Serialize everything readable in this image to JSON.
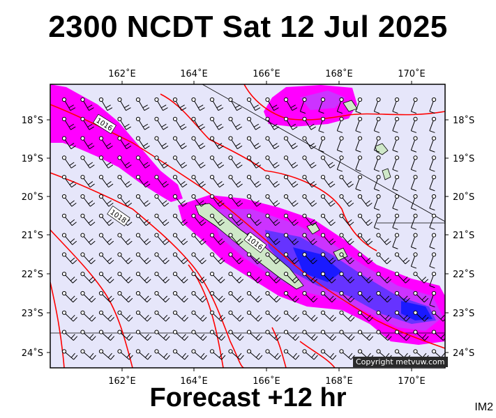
{
  "title": "2300 NCDT Sat 12 Jul 2025",
  "forecast": "Forecast +12 hr",
  "image_tag": "IM2",
  "copyright": "Copyright metvuw.com",
  "lon_labels": [
    "162˚E",
    "164˚E",
    "166˚E",
    "168˚E",
    "170˚E"
  ],
  "lat_labels": [
    "18˚S",
    "19˚S",
    "20˚S",
    "21˚S",
    "22˚S",
    "23˚S",
    "24˚S"
  ],
  "isobar_labels": [
    "1016",
    "1018",
    "1016"
  ],
  "colors": {
    "sea": "#e6e6fa",
    "isobar": "#ff0000",
    "rain_light": "#ff00ff",
    "rain_mid": "#cc33ff",
    "rain_heavy": "#6633ff",
    "rain_max": "#1a1aff",
    "land": "#cfe8c8"
  }
}
